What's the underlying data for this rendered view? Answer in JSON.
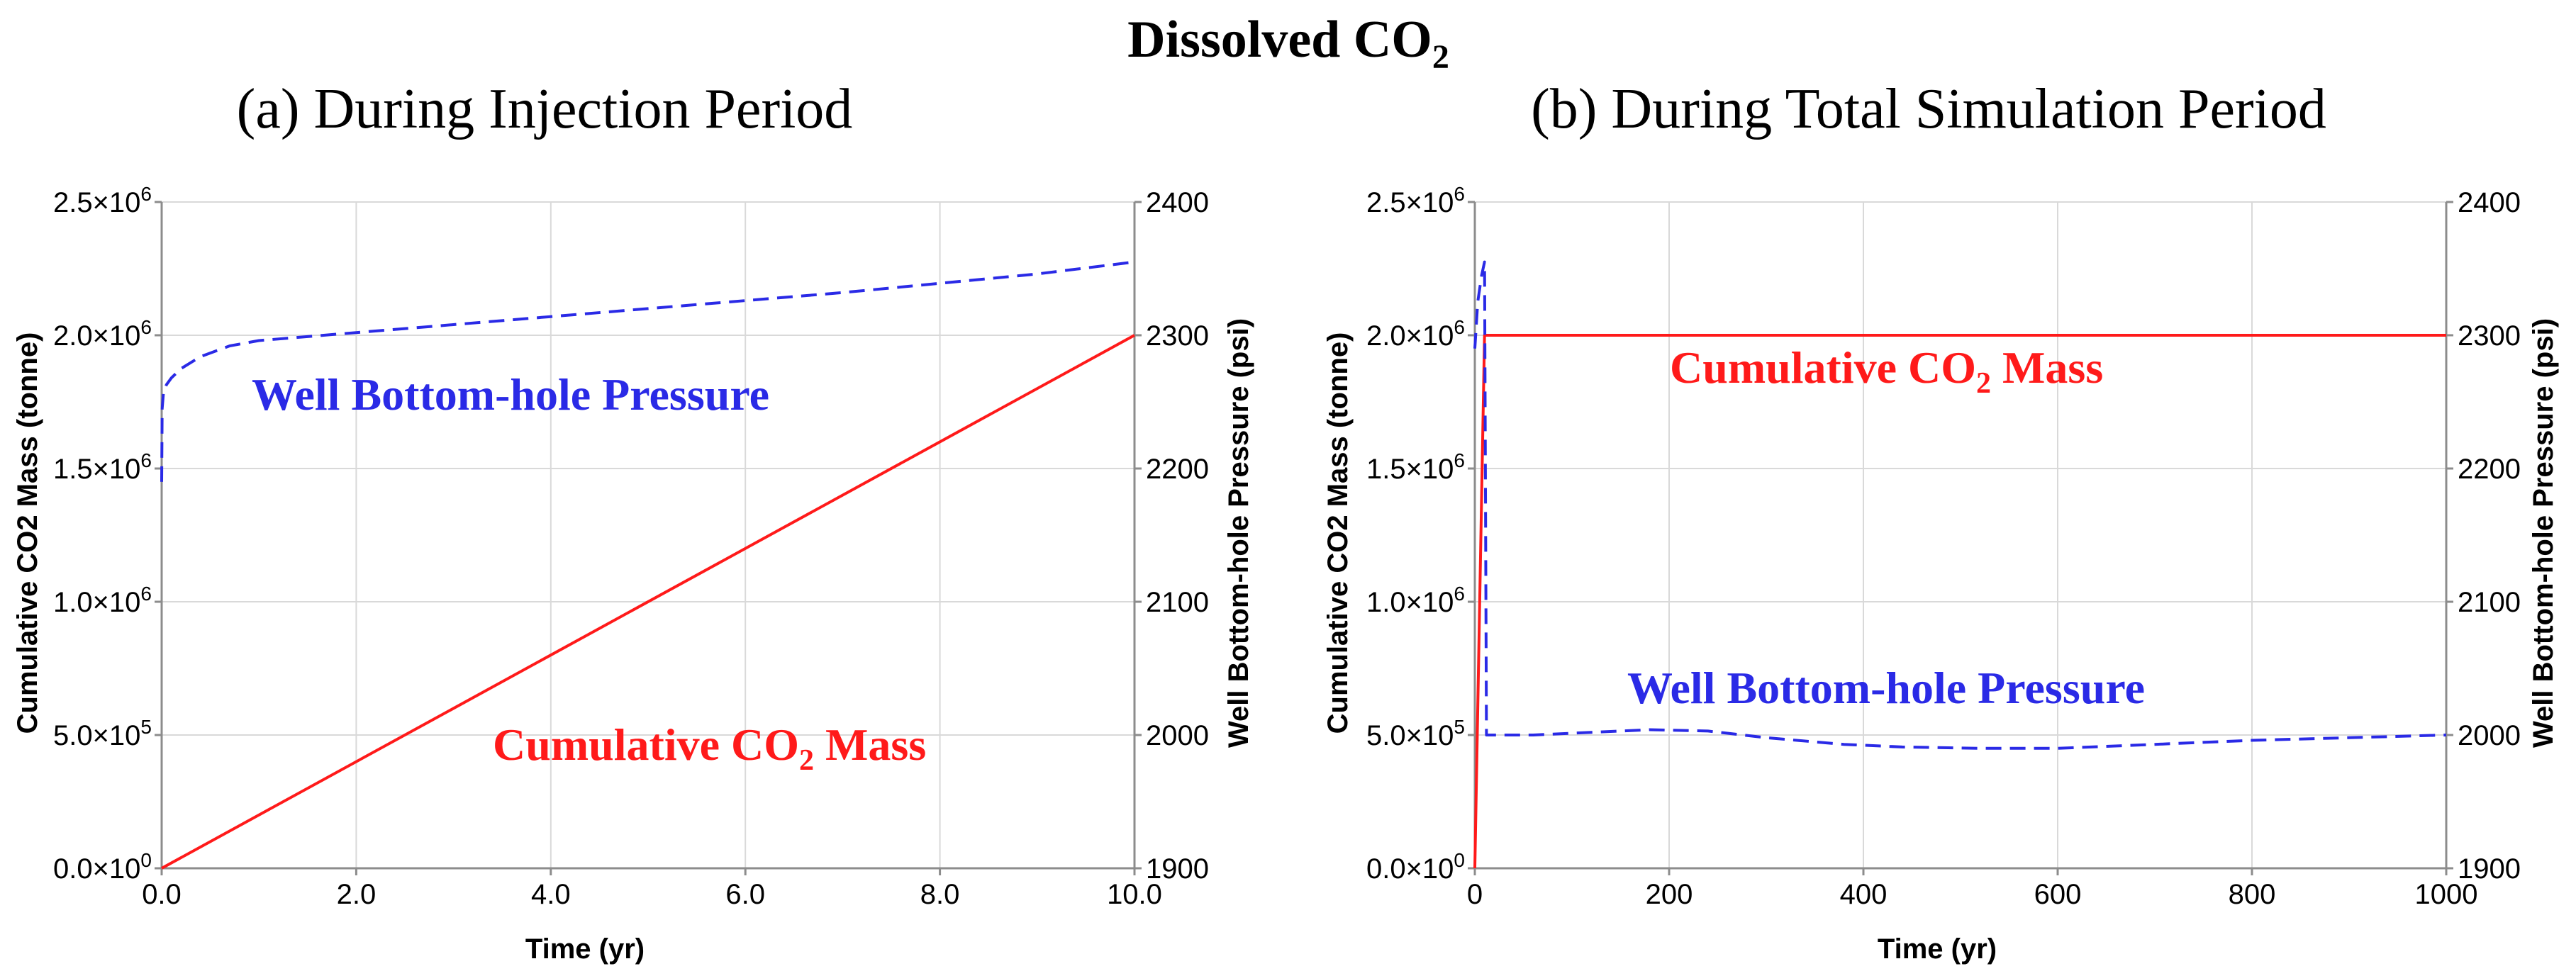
{
  "figure_title": "Dissolved CO",
  "figure_title_subscript": "2",
  "colors": {
    "co2_mass": "#ff1a1a",
    "pressure": "#2a2ae6",
    "grid": "#d9d9d9",
    "axis": "#8c8c8c"
  },
  "chart_data": [
    {
      "type": "line",
      "title": "(a) During Injection Period",
      "xlabel": "Time (yr)",
      "ylabel": "Cumulative CO2 Mass (tonne)",
      "y2label": "Well Bottom-hole Pressure (psi)",
      "xlim": [
        0,
        10
      ],
      "ylim": [
        0,
        2500000
      ],
      "y2lim": [
        1900,
        2400
      ],
      "x_ticks": [
        0,
        2,
        4,
        6,
        8,
        10
      ],
      "x_tick_labels": [
        "0.0",
        "2.0",
        "4.0",
        "6.0",
        "8.0",
        "10.0"
      ],
      "y_ticks": [
        0,
        500000,
        1000000,
        1500000,
        2000000,
        2500000
      ],
      "y_tick_mantissas": [
        "0.0×10",
        "5.0×10",
        "1.0×10",
        "1.5×10",
        "2.0×10",
        "2.5×10"
      ],
      "y_tick_exponents": [
        "0",
        "5",
        "6",
        "6",
        "6",
        "6"
      ],
      "y2_ticks": [
        1900,
        2000,
        2100,
        2200,
        2300,
        2400
      ],
      "y2_tick_labels": [
        "1900",
        "2000",
        "2100",
        "2200",
        "2300",
        "2400"
      ],
      "grid": true,
      "series": [
        {
          "name": "Cumulative CO2 Mass",
          "axis": "left",
          "style": "solid",
          "x": [
            0,
            10
          ],
          "y": [
            0,
            2000000
          ]
        },
        {
          "name": "Well Bottom-hole Pressure",
          "axis": "right",
          "style": "dashed",
          "x": [
            0,
            0.005,
            0.02,
            0.05,
            0.1,
            0.2,
            0.4,
            0.7,
            1.0,
            1.5,
            2,
            3,
            4,
            5,
            6,
            7,
            8,
            9,
            10
          ],
          "y": [
            2190,
            2245,
            2258,
            2263,
            2268,
            2275,
            2284,
            2292,
            2296,
            2299,
            2302,
            2308,
            2314,
            2320,
            2326,
            2332,
            2339,
            2346,
            2355
          ]
        }
      ],
      "annotations": [
        {
          "text": "Well Bottom-hole Pressure",
          "series": "Well Bottom-hole Pressure"
        },
        {
          "text": "Cumulative CO",
          "subscript": "2",
          "suffix": " Mass",
          "series": "Cumulative CO2 Mass"
        }
      ]
    },
    {
      "type": "line",
      "title": "(b) During Total Simulation Period",
      "xlabel": "Time (yr)",
      "ylabel": "Cumulative CO2 Mass (tonne)",
      "y2label": "Well Bottom-hole Pressure (psi)",
      "xlim": [
        0,
        1000
      ],
      "ylim": [
        0,
        2500000
      ],
      "y2lim": [
        1900,
        2400
      ],
      "x_ticks": [
        0,
        200,
        400,
        600,
        800,
        1000
      ],
      "x_tick_labels": [
        "0",
        "200",
        "400",
        "600",
        "800",
        "1000"
      ],
      "y_ticks": [
        0,
        500000,
        1000000,
        1500000,
        2000000,
        2500000
      ],
      "y_tick_mantissas": [
        "0.0×10",
        "5.0×10",
        "1.0×10",
        "1.5×10",
        "2.0×10",
        "2.5×10"
      ],
      "y_tick_exponents": [
        "0",
        "5",
        "6",
        "6",
        "6",
        "6"
      ],
      "y2_ticks": [
        1900,
        2000,
        2100,
        2200,
        2300,
        2400
      ],
      "y2_tick_labels": [
        "1900",
        "2000",
        "2100",
        "2200",
        "2300",
        "2400"
      ],
      "grid": true,
      "series": [
        {
          "name": "Cumulative CO2 Mass",
          "axis": "left",
          "style": "solid",
          "x": [
            0,
            10,
            20,
            1000
          ],
          "y": [
            0,
            2000000,
            2000000,
            2000000
          ]
        },
        {
          "name": "Well Bottom-hole Pressure",
          "axis": "right",
          "style": "dashed",
          "x": [
            0,
            3,
            7,
            10,
            12,
            60,
            120,
            180,
            240,
            300,
            380,
            440,
            520,
            600,
            700,
            800,
            900,
            1000
          ],
          "y": [
            2290,
            2325,
            2345,
            2355,
            2000,
            2000,
            2002,
            2004,
            2003,
            1998,
            1993,
            1991,
            1990,
            1990,
            1993,
            1996,
            1998,
            2000
          ]
        }
      ],
      "annotations": [
        {
          "text": "Cumulative CO",
          "subscript": "2",
          "suffix": " Mass",
          "series": "Cumulative CO2 Mass"
        },
        {
          "text": "Well Bottom-hole Pressure",
          "series": "Well Bottom-hole Pressure"
        }
      ]
    }
  ]
}
